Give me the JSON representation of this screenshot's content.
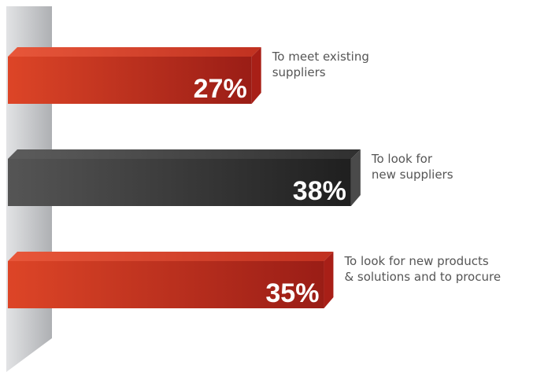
{
  "chart_data": {
    "type": "bar",
    "orientation": "horizontal",
    "categories": [
      "To meet existing\nsuppliers",
      "To look for\nnew suppliers",
      "To look for new products\n& solutions and to procure"
    ],
    "values": [
      27,
      38,
      35
    ],
    "value_labels": [
      "27%",
      "38%",
      "35%"
    ],
    "unit": "%",
    "title": "",
    "xlabel": "",
    "ylabel": "",
    "grid": false,
    "legend": "none",
    "colors": {
      "bars": [
        "#c8321c",
        "#3a3a3a",
        "#c8321c"
      ],
      "axis_wall": "#c4c6c8",
      "value_text": "#ffffff",
      "label_text": "#555555"
    }
  }
}
